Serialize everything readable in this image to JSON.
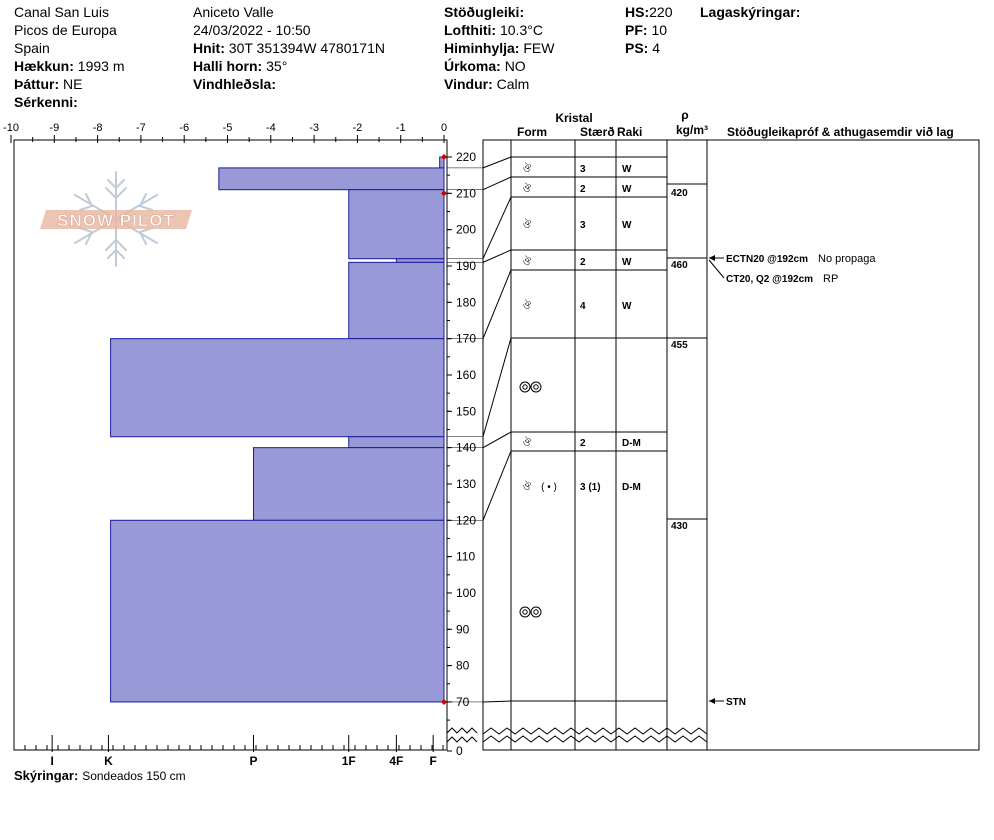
{
  "header": {
    "col1": {
      "location": "Canal San Luis",
      "range": "Picos de Europa",
      "country": "Spain",
      "elevation_label": "Hækkun:",
      "elevation_value": "1993 m",
      "aspect_label": "Þáttur:",
      "aspect_value": "NE",
      "features_label": "Sérkenni:"
    },
    "col2": {
      "observer": "Aniceto Valle",
      "datetime": "24/03/2022 - 10:50",
      "coords_label": "Hnit:",
      "coords_value": "30T 351394W 4780171N",
      "slope_label": "Halli horn:",
      "slope_value": "35°",
      "wind_loading_label": "Vindhleðsla:"
    },
    "col3": {
      "stability_label": "Stöðugleiki:",
      "air_temp_label": "Lofthiti:",
      "air_temp_value": "10.3°C",
      "sky_label": "Himinhylja:",
      "sky_value": "FEW",
      "precip_label": "Úrkoma:",
      "precip_value": "NO",
      "wind_label": "Vindur:",
      "wind_value": "Calm"
    },
    "col4": {
      "hs_label": "HS:",
      "hs_value": "220",
      "pf_label": "PF:",
      "pf_value": "10",
      "ps_label": "PS:",
      "ps_value": "4"
    },
    "layer_notes_label": "Lagaskýringar:"
  },
  "columns": {
    "crystal": "Kristal",
    "form": "Form",
    "size": "Stærð",
    "moisture": "Raki",
    "rho": "ρ",
    "density_unit": "kg/m³",
    "tests_header": "Stöðugleikapróf & athugasemdir við lag"
  },
  "temperature_axis": {
    "ticks": [
      "-10",
      "-9",
      "-8",
      "-7",
      "-6",
      "-5",
      "-4",
      "-3",
      "-2",
      "-1",
      "0"
    ]
  },
  "hardness_axis": {
    "labels": [
      "I",
      "K",
      "P",
      "1F",
      "4F",
      "F"
    ]
  },
  "height_axis": {
    "ticks": [
      "220",
      "210",
      "200",
      "190",
      "180",
      "170",
      "160",
      "150",
      "140",
      "130",
      "120",
      "110",
      "100",
      "90",
      "80",
      "70",
      "0"
    ]
  },
  "logo_text": "SNOW PILOT",
  "footer": {
    "comments_label": "Skýringar:",
    "comments_value": "Sondeados 150 cm"
  },
  "chart_data": {
    "type": "snow_profile",
    "total_height_cm": 220,
    "hardness_scale": [
      "F",
      "4F",
      "1F",
      "P",
      "K",
      "I"
    ],
    "layers": [
      {
        "top_cm": 220,
        "bottom_cm": 217,
        "hardness": "F",
        "hardness_index": 0.1,
        "grain": "",
        "size": "",
        "moisture": "",
        "density": ""
      },
      {
        "top_cm": 217,
        "bottom_cm": 211,
        "hardness": "P",
        "hardness_index": 5.2,
        "grain": "rounded",
        "size": "3",
        "moisture": "W",
        "density": ""
      },
      {
        "top_cm": 211,
        "bottom_cm": 192,
        "hardness": "1F",
        "hardness_index": 2.2,
        "grain": "rounded",
        "size": "2",
        "moisture": "W",
        "density": "420"
      },
      {
        "top_cm": 192,
        "bottom_cm": 191,
        "hardness": "F",
        "hardness_index": 1.1,
        "grain": "",
        "size": "",
        "moisture": "",
        "density": ""
      },
      {
        "top_cm": 191,
        "bottom_cm": 170,
        "hardness": "1F",
        "hardness_index": 2.2,
        "grain": "rounded",
        "size": "4",
        "moisture": "W",
        "density": "460"
      },
      {
        "top_cm": 170,
        "bottom_cm": 143,
        "hardness": "K",
        "hardness_index": 7.7,
        "grain": "melt-freeze",
        "size": "",
        "moisture": "",
        "density": "455"
      },
      {
        "top_cm": 143,
        "bottom_cm": 140,
        "hardness": "1F",
        "hardness_index": 2.2,
        "grain": "rounded",
        "size": "2",
        "moisture": "D-M",
        "density": ""
      },
      {
        "top_cm": 140,
        "bottom_cm": 120,
        "hardness": "P",
        "hardness_index": 4.4,
        "grain": "rounded (precip)",
        "size": "3 (1)",
        "moisture": "D-M",
        "density": ""
      },
      {
        "top_cm": 120,
        "bottom_cm": 70,
        "hardness": "K",
        "hardness_index": 7.7,
        "grain": "melt-freeze",
        "size": "",
        "moisture": "",
        "density": "430"
      }
    ],
    "temperature_points_cm": [
      220,
      210,
      70
    ],
    "tests": [
      {
        "height_cm": 192,
        "code": "ECTN20 @192cm",
        "note": "No propaga"
      },
      {
        "height_cm": 192,
        "code": "CT20, Q2 @192cm",
        "note": "RP"
      },
      {
        "height_cm": 70,
        "code": "STN",
        "note": ""
      }
    ]
  }
}
